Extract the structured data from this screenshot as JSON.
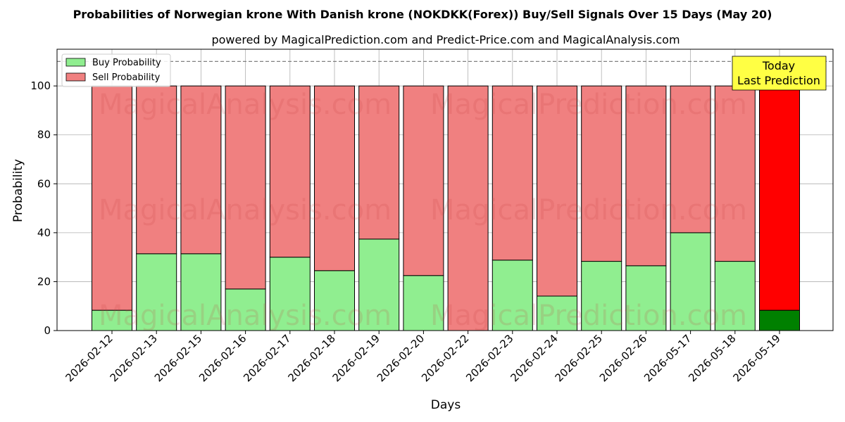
{
  "chart_data": {
    "type": "bar",
    "stacked": true,
    "title": "Probabilities of Norwegian krone With Danish krone (NOKDKK(Forex)) Buy/Sell Signals Over 15 Days (May 20)",
    "subtitle": "powered by MagicalPrediction.com and Predict-Price.com and MagicalAnalysis.com",
    "xlabel": "Days",
    "ylabel": "Probability",
    "ylim": [
      0,
      115
    ],
    "yticks": [
      0,
      20,
      40,
      60,
      80,
      100
    ],
    "categories": [
      "2026-02-12",
      "2026-02-13",
      "2026-02-15",
      "2026-02-16",
      "2026-02-17",
      "2026-02-18",
      "2026-02-19",
      "2026-02-20",
      "2026-02-22",
      "2026-02-23",
      "2026-02-24",
      "2026-02-25",
      "2026-02-26",
      "2026-05-17",
      "2026-05-18",
      "2026-05-19"
    ],
    "series": [
      {
        "name": "Buy Probability",
        "values": [
          8.3,
          31.4,
          31.4,
          17.0,
          30.0,
          24.5,
          37.4,
          22.5,
          0.0,
          28.8,
          14.1,
          28.3,
          26.5,
          40.0,
          28.3,
          8.3
        ],
        "color": "#90ee90",
        "highlight_color": "#008000"
      },
      {
        "name": "Sell Probability",
        "values": [
          91.7,
          68.6,
          68.6,
          83.0,
          70.0,
          75.5,
          62.6,
          77.5,
          100.0,
          71.2,
          85.9,
          71.7,
          73.5,
          60.0,
          71.7,
          91.7
        ],
        "color": "#f08080",
        "highlight_color": "#ff0000"
      }
    ],
    "highlight_index": 15,
    "reference_line": {
      "y": 110,
      "style": "dashed",
      "color": "#808080"
    },
    "annotation": {
      "lines": [
        "Today",
        "Last Prediction"
      ],
      "background": "#ffff44",
      "position": "top-right"
    },
    "legend": {
      "position": "top-left"
    },
    "grid": true,
    "watermarks": [
      "MagicalAnalysis.com",
      "MagicalPrediction.com"
    ]
  }
}
